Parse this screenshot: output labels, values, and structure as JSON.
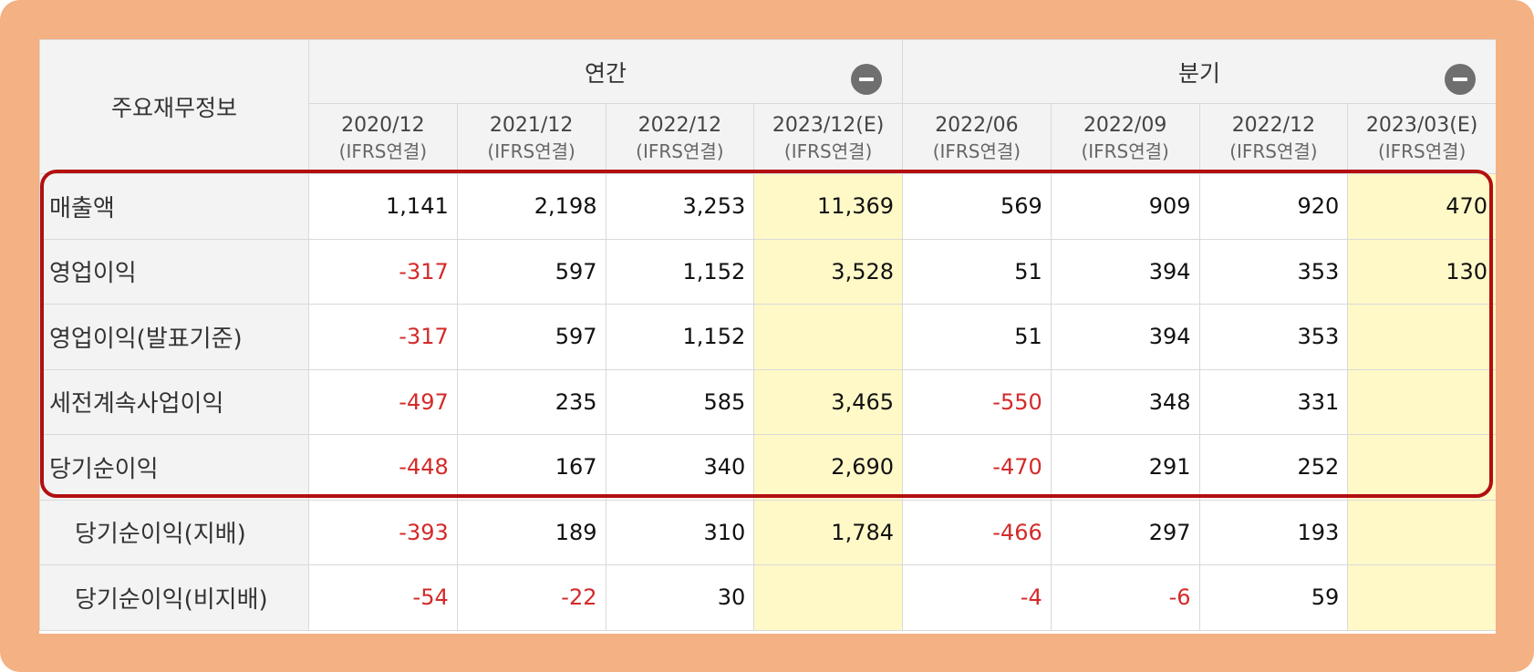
{
  "table": {
    "corner_label": "주요재무정보",
    "groups": [
      {
        "label": "연간",
        "collapse_icon": "minus-circle-icon"
      },
      {
        "label": "분기",
        "collapse_icon": "minus-circle-icon"
      }
    ],
    "periods": [
      {
        "date": "2020/12",
        "basis": "(IFRS연결)"
      },
      {
        "date": "2021/12",
        "basis": "(IFRS연결)"
      },
      {
        "date": "2022/12",
        "basis": "(IFRS연결)"
      },
      {
        "date": "2023/12(E)",
        "basis": "(IFRS연결)"
      },
      {
        "date": "2022/06",
        "basis": "(IFRS연결)"
      },
      {
        "date": "2022/09",
        "basis": "(IFRS연결)"
      },
      {
        "date": "2022/12",
        "basis": "(IFRS연결)"
      },
      {
        "date": "2023/03(E)",
        "basis": "(IFRS연결)"
      }
    ],
    "rows": [
      {
        "label": "매출액",
        "values": [
          "1,141",
          "2,198",
          "3,253",
          "11,369",
          "569",
          "909",
          "920",
          "470"
        ]
      },
      {
        "label": "영업이익",
        "values": [
          "-317",
          "597",
          "1,152",
          "3,528",
          "51",
          "394",
          "353",
          "130"
        ]
      },
      {
        "label": "영업이익(발표기준)",
        "values": [
          "-317",
          "597",
          "1,152",
          "",
          "51",
          "394",
          "353",
          ""
        ]
      },
      {
        "label": "세전계속사업이익",
        "values": [
          "-497",
          "235",
          "585",
          "3,465",
          "-550",
          "348",
          "331",
          ""
        ]
      },
      {
        "label": "당기순이익",
        "values": [
          "-448",
          "167",
          "340",
          "2,690",
          "-470",
          "291",
          "252",
          ""
        ]
      },
      {
        "label": "당기순이익(지배)",
        "values": [
          "-393",
          "189",
          "310",
          "1,784",
          "-466",
          "297",
          "193",
          ""
        ]
      },
      {
        "label": "당기순이익(비지배)",
        "values": [
          "-54",
          "-22",
          "30",
          "",
          "-4",
          "-6",
          "59",
          ""
        ]
      }
    ]
  },
  "colors": {
    "frame": "#f4b183",
    "header_bg": "#f3f3f3",
    "estimate_bg": "#fff9c8",
    "negative": "#d42a2a",
    "highlight_border": "#b30f0f"
  }
}
